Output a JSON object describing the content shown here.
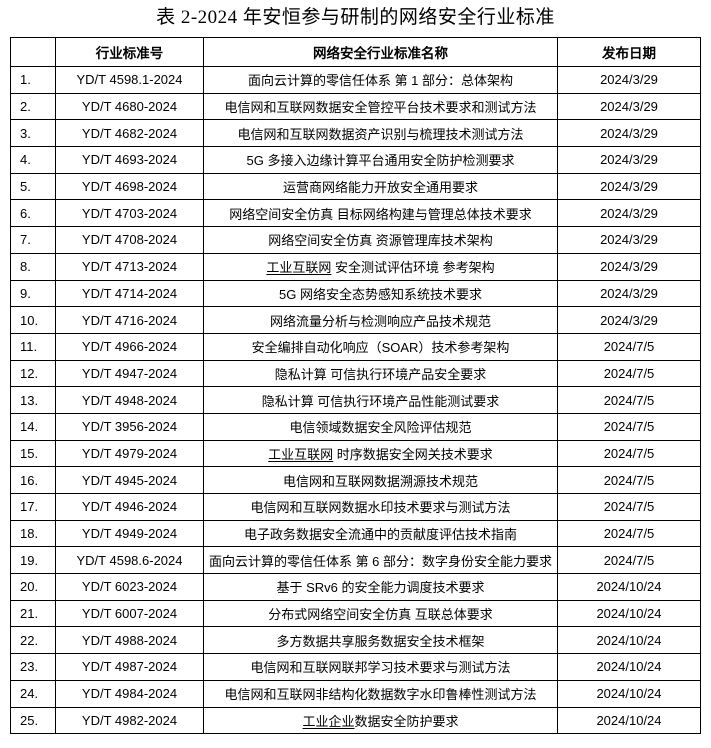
{
  "title": "表 2-2024 年安恒参与研制的网络安全行业标准",
  "table": {
    "headers": {
      "index": "",
      "standard_no": "行业标准号",
      "name": "网络安全行业标准名称",
      "date": "发布日期"
    },
    "rows": [
      {
        "index": "1.",
        "no": "YD/T 4598.1-2024",
        "name": "面向云计算的零信任体系 第 1 部分：总体架构",
        "date": "2024/3/29"
      },
      {
        "index": "2.",
        "no": "YD/T 4680-2024",
        "name": "电信网和互联网数据安全管控平台技术要求和测试方法",
        "date": "2024/3/29"
      },
      {
        "index": "3.",
        "no": "YD/T 4682-2024",
        "name": "电信网和互联网数据资产识别与梳理技术测试方法",
        "date": "2024/3/29"
      },
      {
        "index": "4.",
        "no": "YD/T 4693-2024",
        "name": "5G 多接入边缘计算平台通用安全防护检测要求",
        "date": "2024/3/29"
      },
      {
        "index": "5.",
        "no": "YD/T 4698-2024",
        "name": "运营商网络能力开放安全通用要求",
        "date": "2024/3/29"
      },
      {
        "index": "6.",
        "no": "YD/T 4703-2024",
        "name": "网络空间安全仿真 目标网络构建与管理总体技术要求",
        "date": "2024/3/29"
      },
      {
        "index": "7.",
        "no": "YD/T 4708-2024",
        "name": "网络空间安全仿真 资源管理库技术架构",
        "date": "2024/3/29"
      },
      {
        "index": "8.",
        "no": "YD/T 4713-2024",
        "name": "工业互联网 安全测试评估环境 参考架构",
        "underline_prefix": "工业互联网",
        "date": "2024/3/29"
      },
      {
        "index": "9.",
        "no": "YD/T 4714-2024",
        "name": "5G 网络安全态势感知系统技术要求",
        "date": "2024/3/29"
      },
      {
        "index": "10.",
        "no": "YD/T 4716-2024",
        "name": "网络流量分析与检测响应产品技术规范",
        "date": "2024/3/29"
      },
      {
        "index": "11.",
        "no": "YD/T 4966-2024",
        "name": "安全编排自动化响应（SOAR）技术参考架构",
        "date": "2024/7/5"
      },
      {
        "index": "12.",
        "no": "YD/T 4947-2024",
        "name": "隐私计算 可信执行环境产品安全要求",
        "date": "2024/7/5"
      },
      {
        "index": "13.",
        "no": "YD/T 4948-2024",
        "name": "隐私计算 可信执行环境产品性能测试要求",
        "date": "2024/7/5"
      },
      {
        "index": "14.",
        "no": "YD/T 3956-2024",
        "name": "电信领域数据安全风险评估规范",
        "date": "2024/7/5"
      },
      {
        "index": "15.",
        "no": "YD/T 4979-2024",
        "name": "工业互联网 时序数据安全网关技术要求",
        "underline_prefix": "工业互联网",
        "date": "2024/7/5"
      },
      {
        "index": "16.",
        "no": "YD/T 4945-2024",
        "name": "电信网和互联网数据溯源技术规范",
        "date": "2024/7/5"
      },
      {
        "index": "17.",
        "no": "YD/T 4946-2024",
        "name": "电信网和互联网数据水印技术要求与测试方法",
        "date": "2024/7/5"
      },
      {
        "index": "18.",
        "no": "YD/T 4949-2024",
        "name": "电子政务数据安全流通中的贡献度评估技术指南",
        "date": "2024/7/5"
      },
      {
        "index": "19.",
        "no": "YD/T 4598.6-2024",
        "name": "面向云计算的零信任体系 第 6 部分：数字身份安全能力要求",
        "date": "2024/7/5"
      },
      {
        "index": "20.",
        "no": "YD/T 6023-2024",
        "name": "基于 SRv6 的安全能力调度技术要求",
        "date": "2024/10/24"
      },
      {
        "index": "21.",
        "no": "YD/T 6007-2024",
        "name": "分布式网络空间安全仿真 互联总体要求",
        "date": "2024/10/24"
      },
      {
        "index": "22.",
        "no": "YD/T 4988-2024",
        "name": "多方数据共享服务数据安全技术框架",
        "date": "2024/10/24"
      },
      {
        "index": "23.",
        "no": "YD/T 4987-2024",
        "name": "电信网和互联网联邦学习技术要求与测试方法",
        "date": "2024/10/24"
      },
      {
        "index": "24.",
        "no": "YD/T 4984-2024",
        "name": "电信网和互联网非结构化数据数字水印鲁棒性测试方法",
        "date": "2024/10/24"
      },
      {
        "index": "25.",
        "no": "YD/T 4982-2024",
        "name": "工业企业数据安全防护要求",
        "underline_prefix": "工业企业",
        "date": "2024/10/24"
      }
    ]
  },
  "colors": {
    "text": "#000000",
    "border": "#000000",
    "background": "#ffffff"
  }
}
